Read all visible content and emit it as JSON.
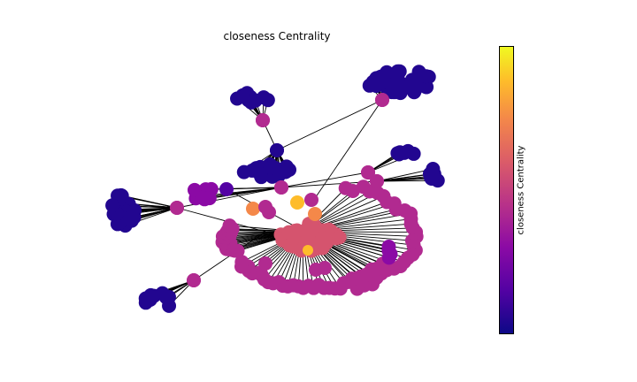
{
  "title": "closeness Centrality",
  "colorbar": {
    "label": "closeness Centrality",
    "colormap": "plasma"
  },
  "palette": {
    "level0": "#0d0887",
    "level1": "#220690",
    "level2": "#5302a3",
    "level3": "#8b0aa5",
    "level4": "#b12a90",
    "level5": "#d5546e",
    "level6": "#f48849",
    "level7": "#febc2a"
  },
  "graph": {
    "edge_color": "#000000",
    "node_levels_present": [
      0,
      1,
      2,
      3,
      4,
      5,
      6,
      7
    ]
  }
}
